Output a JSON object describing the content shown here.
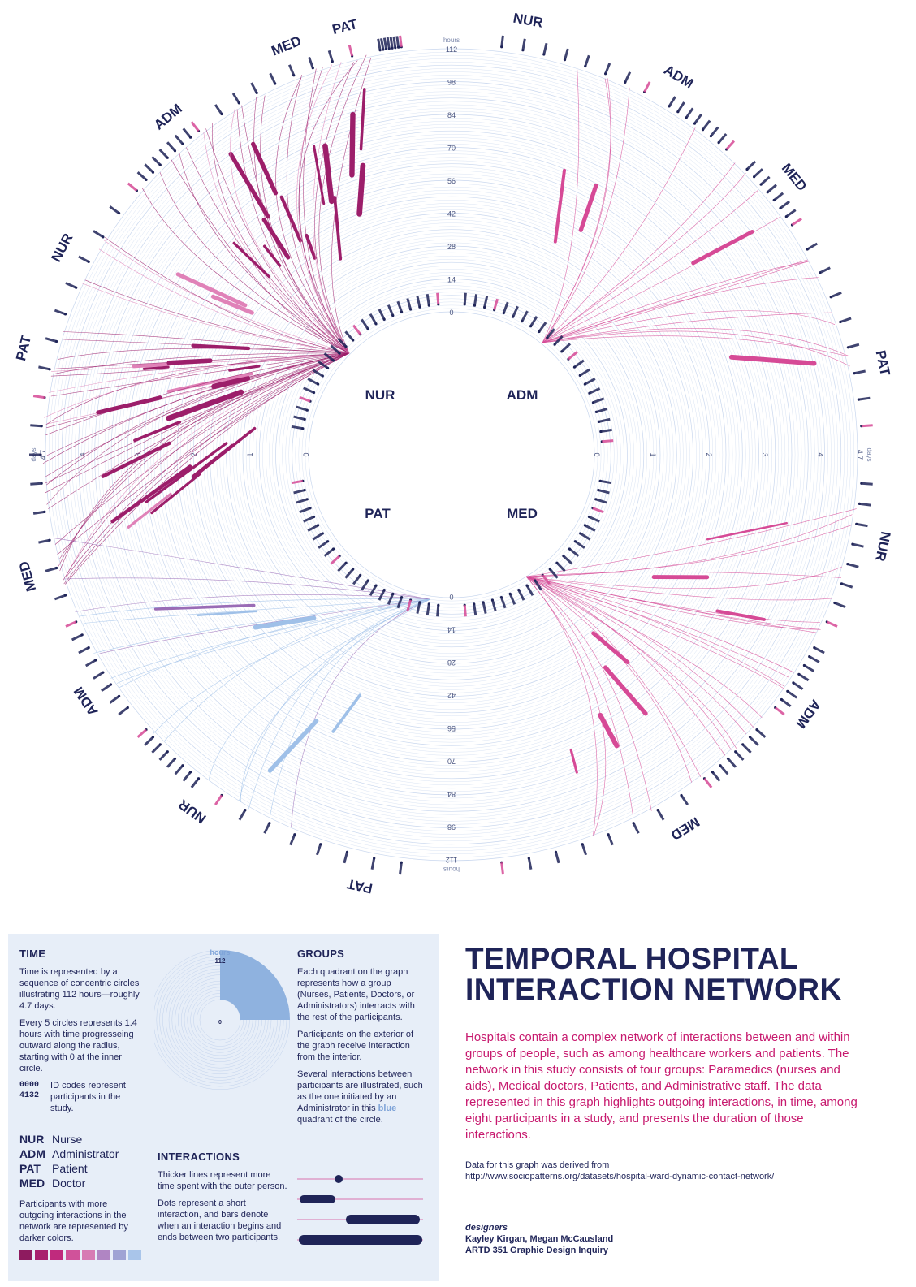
{
  "diagram": {
    "quadrant_groups": [
      "NUR",
      "ADM",
      "PAT",
      "MED"
    ],
    "outer_labels": [
      "PAT",
      "NUR",
      "ADM",
      "MED",
      "PAT",
      "NUR",
      "ADM",
      "MED",
      "PAT",
      "NUR",
      "ADM",
      "MED",
      "PAT",
      "NUR",
      "ADM",
      "MED"
    ],
    "hours_unit": "hours",
    "hour_ticks": [
      "0",
      "14",
      "28",
      "42",
      "56",
      "70",
      "84",
      "98",
      "112"
    ],
    "days_unit": "days",
    "day_ticks": [
      "0",
      "1",
      "2",
      "3",
      "4",
      "4.7"
    ],
    "colors": {
      "dark_magenta": "#9c1e6a",
      "pink": "#d64a96",
      "light_pink": "#e082b8",
      "purple": "#9a6cb6",
      "light_blue": "#9fc0e8",
      "navy": "#1f2458",
      "ring": "#c9d7ee"
    }
  },
  "legend": {
    "time": {
      "heading": "TIME",
      "p1": "Time is represented by a sequence of concentric circles illustrating 112 hours—roughly 4.7 days.",
      "p2": "Every 5 circles represents 1.4 hours with time progresseing outward along the radius, starting with 0 at the inner circle.",
      "code_a": "0000",
      "code_b": "4132",
      "code_text": "ID codes represent participants in the study.",
      "abbr": [
        {
          "code": "NUR",
          "name": "Nurse"
        },
        {
          "code": "ADM",
          "name": "Administrator"
        },
        {
          "code": "PAT",
          "name": "Patient"
        },
        {
          "code": "MED",
          "name": "Doctor"
        }
      ],
      "darker_text": "Participants with more outgoing interactions in the network are represented by darker colors.",
      "swatches": [
        "#8e1b5f",
        "#a8206e",
        "#c02a7d",
        "#d0529a",
        "#d77bb4",
        "#b085c3",
        "#9fa3d4",
        "#a9c5ea"
      ]
    },
    "mini": {
      "hours": "hours",
      "max": "112",
      "zero": "0"
    },
    "groups": {
      "heading": "GROUPS",
      "p1": "Each quadrant on the graph represents how a group (Nurses, Patients, Doctors, or Administrators) interracts with the rest of the participants.",
      "p2": "Participants on the exterior of the graph receive interaction from the interior.",
      "p3_a": "Several interactions between participants are illustrated, such as the one initiated by an Administrator in this",
      "p3_blue": "blue",
      "p3_b": "quadrant of the circle."
    },
    "interactions": {
      "heading": "INTERACTIONS",
      "p1": "Thicker lines represent more time spent with the outer person.",
      "p2": "Dots represent a short interaction, and bars denote when an interaction begins and ends between two participants."
    }
  },
  "title_line1": "TEMPORAL HOSPITAL",
  "title_line2": "INTERACTION NETWORK",
  "description": "Hospitals contain a complex network of interactions between and within groups of people, such as among healthcare workers and patients. The network in this study consists of four groups: Paramedics (nurses and aids), Medical doctors, Patients, and Administrative staff. The data represented in this graph highlights outgoing interactions, in time, among eight participants in a study, and presents the duration of those interactions.",
  "source_label": "Data for this graph was derived from",
  "source_url": "http://www.sociopatterns.org/datasets/hospital-ward-dynamic-contact-network/",
  "designers_label": "designers",
  "designers_names": "Kayley Kirgan, Megan McCausland",
  "designers_course": "ARTD 351 Graphic Design Inquiry"
}
